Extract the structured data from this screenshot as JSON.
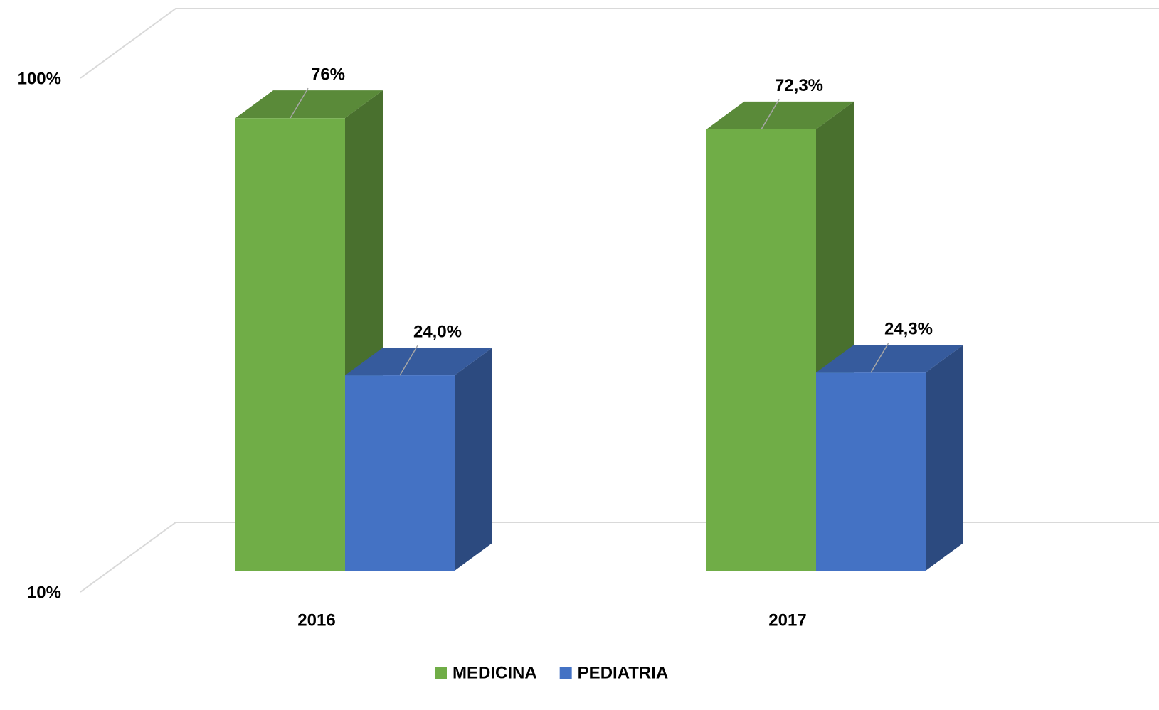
{
  "chart_data": {
    "type": "bar3d",
    "categories": [
      "2016",
      "2017"
    ],
    "series": [
      {
        "name": "MEDICINA",
        "color": "#70ad47",
        "values": [
          76,
          72.3
        ],
        "value_labels": [
          "76%",
          "72,3%"
        ]
      },
      {
        "name": "PEDIATRIA",
        "color": "#4472c4",
        "values": [
          24.0,
          24.3
        ],
        "value_labels": [
          "24,0%",
          "24,3%"
        ]
      }
    ],
    "ylim": [
      10,
      100
    ],
    "log_scale": true,
    "yticks": [
      {
        "value": 10,
        "label": "10%"
      },
      {
        "value": 100,
        "label": "100%"
      }
    ],
    "grid": true,
    "legend": "bottom"
  }
}
